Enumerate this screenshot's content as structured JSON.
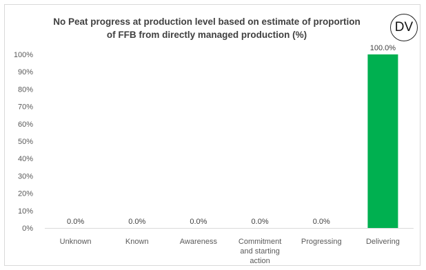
{
  "chart_data": {
    "type": "bar",
    "title_lines": [
      "No Peat progress at production level based on estimate of proportion",
      "of FFB from directly managed production (%)"
    ],
    "categories": [
      [
        "Unknown"
      ],
      [
        "Known"
      ],
      [
        "Awareness"
      ],
      [
        "Commitment",
        "and starting",
        "action"
      ],
      [
        "Progressing"
      ],
      [
        "Delivering"
      ]
    ],
    "values": [
      0,
      0,
      0,
      0,
      0,
      100
    ],
    "data_labels": [
      "0.0%",
      "0.0%",
      "0.0%",
      "0.0%",
      "0.0%",
      "100.0%"
    ],
    "y_ticks": [
      "0%",
      "10%",
      "20%",
      "30%",
      "40%",
      "50%",
      "60%",
      "70%",
      "80%",
      "90%",
      "100%"
    ],
    "ylim": [
      0,
      100
    ],
    "xlabel": "",
    "ylabel": "",
    "grid": false,
    "legend": "none",
    "bar_color": "#00b050"
  },
  "badge": {
    "text": "DV"
  }
}
